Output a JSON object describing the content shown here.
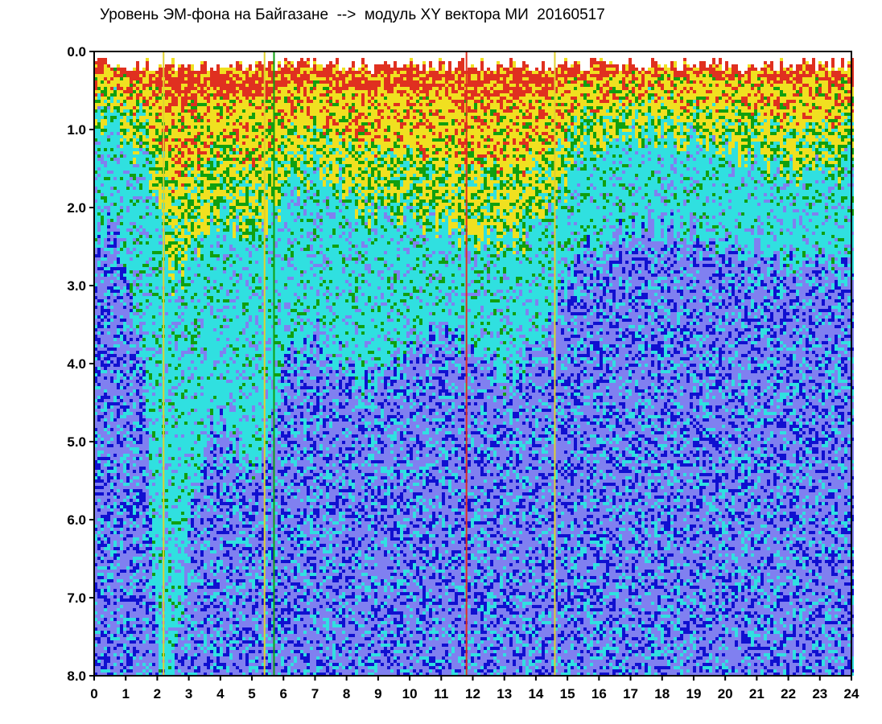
{
  "chart_data": {
    "type": "heatmap",
    "title": "Уровень ЭМ-фона на Байгазане  -->  модуль XY вектора МИ  20160517",
    "xlabel": "",
    "ylabel": "",
    "xlim": [
      0,
      24
    ],
    "ylim": [
      0,
      8
    ],
    "y_inverted": true,
    "grid": false,
    "x_ticks": [
      "0",
      "1",
      "2",
      "3",
      "4",
      "5",
      "6",
      "7",
      "8",
      "9",
      "10",
      "11",
      "12",
      "13",
      "14",
      "15",
      "16",
      "17",
      "18",
      "19",
      "20",
      "21",
      "22",
      "23",
      "24"
    ],
    "y_ticks": [
      "0.0",
      "1.0",
      "2.0",
      "3.0",
      "4.0",
      "5.0",
      "6.0",
      "7.0",
      "8.0"
    ],
    "colormap": [
      "#ffffff",
      "#e03020",
      "#f0e020",
      "#10a010",
      "#30e0e0",
      "#8080f0",
      "#1010d0"
    ],
    "color_bands": [
      {
        "color": "#e03020",
        "label": "red"
      },
      {
        "color": "#f0e020",
        "label": "yellow"
      },
      {
        "color": "#10a010",
        "label": "green"
      },
      {
        "color": "#30e0e0",
        "label": "cyan"
      },
      {
        "color": "#8080f0",
        "label": "light blue"
      },
      {
        "color": "#1010d0",
        "label": "blue"
      }
    ],
    "boundary_profile": {
      "hours": [
        0.0,
        0.5,
        1.0,
        1.5,
        2.0,
        2.5,
        3.0,
        3.5,
        4.0,
        4.5,
        5.0,
        5.5,
        6.0,
        6.5,
        7.0,
        7.5,
        8.0,
        8.5,
        9.0,
        9.5,
        10.0,
        10.5,
        11.0,
        11.5,
        12.0,
        12.5,
        13.0,
        13.5,
        14.0,
        14.5,
        15.0,
        15.5,
        16.0,
        16.5,
        17.0,
        17.5,
        18.0,
        18.5,
        19.0,
        19.5,
        20.0,
        20.5,
        21.0,
        21.5,
        22.0,
        22.5,
        23.0,
        23.5,
        24.0
      ],
      "cyan_top": [
        0.9,
        0.9,
        1.1,
        1.3,
        2.0,
        3.0,
        2.6,
        2.3,
        2.0,
        2.2,
        2.4,
        2.2,
        1.8,
        1.6,
        1.5,
        1.6,
        1.8,
        2.0,
        2.1,
        2.1,
        2.0,
        2.1,
        2.2,
        2.3,
        2.4,
        2.4,
        2.5,
        2.4,
        2.2,
        2.0,
        1.6,
        1.3,
        1.1,
        1.1,
        1.0,
        1.0,
        1.0,
        1.1,
        1.1,
        1.1,
        1.2,
        1.3,
        1.4,
        1.5,
        1.5,
        1.4,
        1.5,
        1.5,
        1.4
      ],
      "blue_top": [
        2.4,
        2.2,
        2.8,
        3.8,
        8.0,
        8.0,
        6.0,
        5.0,
        4.6,
        5.0,
        5.5,
        5.0,
        4.0,
        3.8,
        3.6,
        3.8,
        4.0,
        4.2,
        4.2,
        4.0,
        3.8,
        3.6,
        3.5,
        3.6,
        3.8,
        4.0,
        4.2,
        4.0,
        3.8,
        3.4,
        2.9,
        2.6,
        2.4,
        2.3,
        2.3,
        2.2,
        2.2,
        2.3,
        2.3,
        2.4,
        2.4,
        2.5,
        2.6,
        2.7,
        2.7,
        2.6,
        2.6,
        2.8,
        2.9
      ]
    },
    "vertical_lines": [
      {
        "hour": 11.8,
        "color": "#e03020"
      },
      {
        "hour": 14.6,
        "color": "#e0d030"
      },
      {
        "hour": 2.2,
        "color": "#e0d030"
      },
      {
        "hour": 5.4,
        "color": "#e0d030"
      },
      {
        "hour": 5.7,
        "color": "#10a010"
      }
    ]
  }
}
